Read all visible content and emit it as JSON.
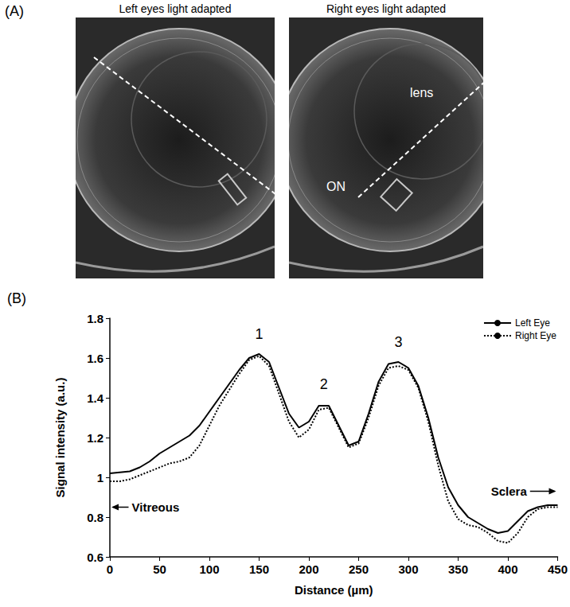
{
  "panel_a": {
    "label": "(A)",
    "images": [
      {
        "title": "Left eyes light adapted",
        "labels": []
      },
      {
        "title": "Right eyes light adapted",
        "labels": [
          "lens",
          "ON"
        ]
      }
    ]
  },
  "chart_data": {
    "type": "line",
    "title": "(B)",
    "x_label": "Distance (µm)",
    "y_label": "Signal intensity (a.u.)",
    "x": [
      0,
      10,
      20,
      30,
      40,
      50,
      60,
      70,
      80,
      90,
      100,
      110,
      120,
      130,
      140,
      150,
      160,
      170,
      180,
      190,
      200,
      210,
      220,
      230,
      240,
      250,
      260,
      270,
      280,
      290,
      300,
      310,
      320,
      330,
      340,
      350,
      360,
      370,
      380,
      390,
      400,
      410,
      420,
      430,
      440,
      450
    ],
    "series": [
      {
        "name": "Left Eye",
        "color": "#000000",
        "line_style": "solid",
        "values": [
          1.02,
          1.025,
          1.03,
          1.05,
          1.08,
          1.12,
          1.15,
          1.18,
          1.21,
          1.26,
          1.33,
          1.4,
          1.47,
          1.54,
          1.6,
          1.62,
          1.58,
          1.45,
          1.32,
          1.25,
          1.28,
          1.36,
          1.36,
          1.26,
          1.16,
          1.18,
          1.32,
          1.48,
          1.57,
          1.58,
          1.55,
          1.46,
          1.3,
          1.1,
          0.95,
          0.86,
          0.8,
          0.77,
          0.74,
          0.72,
          0.73,
          0.78,
          0.83,
          0.85,
          0.86,
          0.86
        ]
      },
      {
        "name": "Right Eye",
        "color": "#000000",
        "line_style": "dotted",
        "values": [
          0.98,
          0.98,
          0.99,
          1.01,
          1.03,
          1.05,
          1.07,
          1.08,
          1.1,
          1.16,
          1.26,
          1.36,
          1.44,
          1.52,
          1.59,
          1.61,
          1.56,
          1.42,
          1.28,
          1.2,
          1.24,
          1.34,
          1.35,
          1.25,
          1.15,
          1.17,
          1.3,
          1.46,
          1.55,
          1.56,
          1.54,
          1.45,
          1.28,
          1.06,
          0.88,
          0.79,
          0.76,
          0.75,
          0.72,
          0.68,
          0.67,
          0.72,
          0.8,
          0.84,
          0.85,
          0.85
        ]
      }
    ],
    "xlim": [
      0,
      450
    ],
    "xticks": [
      0,
      50,
      100,
      150,
      200,
      250,
      300,
      350,
      400,
      450
    ],
    "ylim": [
      0.6,
      1.8
    ],
    "yticks": [
      0.6,
      0.8,
      1,
      1.2,
      1.4,
      1.6,
      1.8
    ],
    "grid": false,
    "legend": "upper right",
    "peak_labels": [
      {
        "text": "1",
        "x": 150,
        "y": 1.72
      },
      {
        "text": "2",
        "x": 215,
        "y": 1.47
      },
      {
        "text": "3",
        "x": 290,
        "y": 1.68
      }
    ],
    "annotations": [
      {
        "text": "Vitreous",
        "x": 22,
        "y": 0.85
      },
      {
        "text": "Sclera",
        "x": 383,
        "y": 0.93
      }
    ]
  }
}
